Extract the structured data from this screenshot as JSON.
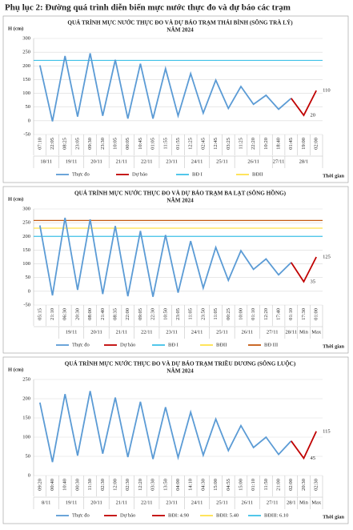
{
  "header": {
    "title": "Phụ lục 2: Đường quá trình diễn biến mực nước thực đo và dự báo các trạm"
  },
  "chart_data": [
    {
      "type": "line",
      "title": "QUÁ TRÌNH MỰC NƯỚC THỰC ĐO VÀ DỰ BÁO TRẠM THÁI BÌNH (SÔNG TRÀ LÝ)",
      "subtitle": "NĂM 2024",
      "y_label": "H (cm)",
      "x_label": "Thời gian",
      "categories": [
        "07:10",
        "22:05",
        "08:25",
        "23:05",
        "09:30",
        "23:30",
        "10:05",
        "00:05",
        "10:45",
        "01:05",
        "11:55",
        "01:55",
        "12:25",
        "02:45",
        "12:45",
        "03:25",
        "11:25",
        "22:20",
        "10:20",
        "18:40",
        "01:45",
        "19:00",
        "02:00"
      ],
      "dates": [
        "18/11",
        null,
        "19/11",
        null,
        "20/11",
        null,
        "21/11",
        null,
        "22/11",
        null,
        "23/11",
        null,
        "24/11",
        null,
        "25/11",
        null,
        "26/11",
        null,
        null,
        "27/11",
        "28/1",
        null,
        null
      ],
      "ylim": [
        -50,
        300
      ],
      "yticks": [
        -50,
        0,
        50,
        100,
        150,
        200,
        250,
        300
      ],
      "grid": true,
      "series": [
        {
          "name": "Thực đo",
          "color": "#5b9bd5",
          "values": [
            202,
            -2,
            236,
            15,
            246,
            18,
            222,
            8,
            208,
            8,
            190,
            18,
            172,
            28,
            148,
            45,
            125,
            60,
            93,
            42,
            82,
            null,
            null
          ]
        },
        {
          "name": "Dự báo",
          "color": "#c00000",
          "values": [
            null,
            null,
            null,
            null,
            null,
            null,
            null,
            null,
            null,
            null,
            null,
            null,
            null,
            null,
            null,
            null,
            null,
            null,
            null,
            null,
            82,
            20,
            110
          ],
          "value_labels": [
            null,
            null,
            null,
            null,
            null,
            null,
            null,
            null,
            null,
            null,
            null,
            null,
            null,
            null,
            null,
            null,
            null,
            null,
            null,
            null,
            null,
            "20",
            "110"
          ]
        }
      ],
      "reference_lines": [
        {
          "name": "BĐ I",
          "color": "#3fc1e8",
          "value": 220
        },
        {
          "name": "BĐII",
          "color": "#ffe14a"
        }
      ]
    },
    {
      "type": "line",
      "title": "QUÁ TRÌNH MỰC NƯỚC THỰC ĐO VÀ DỰ BÁO TRẠM BA LẠT (SÔNG HỒNG)",
      "subtitle": "NĂM 2024",
      "y_label": "H (cm)",
      "x_label": "Thời gian",
      "categories": [
        "05:15",
        "21:10",
        "06:30",
        "20:30",
        "08:00",
        "21:40",
        "08:35",
        "22:00",
        "09:05",
        "22:30",
        "10:50",
        "23:05",
        "11:05",
        "23:50",
        "11:05",
        "00:25",
        "10:00",
        "01:10",
        "12:20",
        "17:40",
        "01:10",
        "17:30",
        "01:00"
      ],
      "dates": [
        null,
        null,
        "19/11",
        null,
        "20/11",
        null,
        "21/11",
        null,
        "22/11",
        null,
        "23/11",
        null,
        "24/11",
        null,
        "25/11",
        null,
        "26/11",
        null,
        "27/11",
        null,
        "28/11",
        "Min",
        "Max"
      ],
      "ylim": [
        -50,
        300
      ],
      "yticks": [
        -50,
        0,
        50,
        100,
        150,
        200,
        250,
        300
      ],
      "grid": true,
      "series": [
        {
          "name": "Thực đo",
          "color": "#5b9bd5",
          "values": [
            240,
            -15,
            268,
            5,
            262,
            -10,
            238,
            -18,
            220,
            -20,
            205,
            -5,
            183,
            12,
            160,
            40,
            148,
            80,
            118,
            60,
            105,
            null,
            null
          ]
        },
        {
          "name": "Dự báo",
          "color": "#c00000",
          "values": [
            null,
            null,
            null,
            null,
            null,
            null,
            null,
            null,
            null,
            null,
            null,
            null,
            null,
            null,
            null,
            null,
            null,
            null,
            null,
            null,
            105,
            35,
            125
          ],
          "value_labels": [
            null,
            null,
            null,
            null,
            null,
            null,
            null,
            null,
            null,
            null,
            null,
            null,
            null,
            null,
            null,
            null,
            null,
            null,
            null,
            null,
            null,
            "35",
            "125"
          ]
        }
      ],
      "reference_lines": [
        {
          "name": "BĐ I",
          "color": "#3fc1e8",
          "value": 200
        },
        {
          "name": "BĐII",
          "color": "#ffe14a",
          "value": 230
        },
        {
          "name": "BĐ III",
          "color": "#c55a11",
          "value": 258
        }
      ]
    },
    {
      "type": "line",
      "title": "QUÁ TRÌNH MỰC NƯỚC THỰC ĐO VÀ DỰ BÁO TRẠM TRIỀU DƯƠNG (SÔNG LUỘC)",
      "subtitle": "NĂM 2024",
      "y_label": "H (cm)",
      "x_label": "Thời gian",
      "categories": [
        "09:20",
        "00:40",
        "10:40",
        "00:30",
        "11:30",
        "02:30",
        "12:00",
        "02:30",
        "12:20",
        "03:30",
        "13:50",
        "04:00",
        "14:10",
        "04:30",
        "15:00",
        "04:55",
        "15:00",
        "01:10",
        "11:50",
        "21:00",
        "02:00",
        "20:30",
        "02:30"
      ],
      "dates": [
        "8/11",
        null,
        "19/11",
        null,
        "20/11",
        null,
        "21/11",
        null,
        "22/11",
        null,
        "23/11",
        null,
        "24/11",
        null,
        "25/11",
        null,
        "26/11",
        null,
        "27/11",
        null,
        "28/1",
        "Min",
        "Max"
      ],
      "ylim": [
        0,
        250
      ],
      "yticks": [
        0,
        50,
        100,
        150,
        200,
        250
      ],
      "grid": true,
      "series": [
        {
          "name": "Thực đo",
          "color": "#5b9bd5",
          "values": [
            190,
            35,
            212,
            52,
            220,
            57,
            203,
            48,
            192,
            43,
            178,
            47,
            165,
            53,
            147,
            65,
            130,
            73,
            100,
            55,
            90,
            null,
            null
          ]
        },
        {
          "name": "Dự báo",
          "color": "#c00000",
          "values": [
            null,
            null,
            null,
            null,
            null,
            null,
            null,
            null,
            null,
            null,
            null,
            null,
            null,
            null,
            null,
            null,
            null,
            null,
            null,
            null,
            90,
            45,
            115
          ],
          "value_labels": [
            null,
            null,
            null,
            null,
            null,
            null,
            null,
            null,
            null,
            null,
            null,
            null,
            null,
            null,
            null,
            null,
            null,
            null,
            null,
            null,
            null,
            "45",
            "115"
          ]
        }
      ],
      "reference_lines": [
        {
          "name": "BĐI: 4.90",
          "color": "#c00000"
        },
        {
          "name": "BĐII: 5.40",
          "color": "#ffe14a"
        },
        {
          "name": "BĐIII: 6.10",
          "color": "#3fc1e8"
        }
      ]
    }
  ]
}
